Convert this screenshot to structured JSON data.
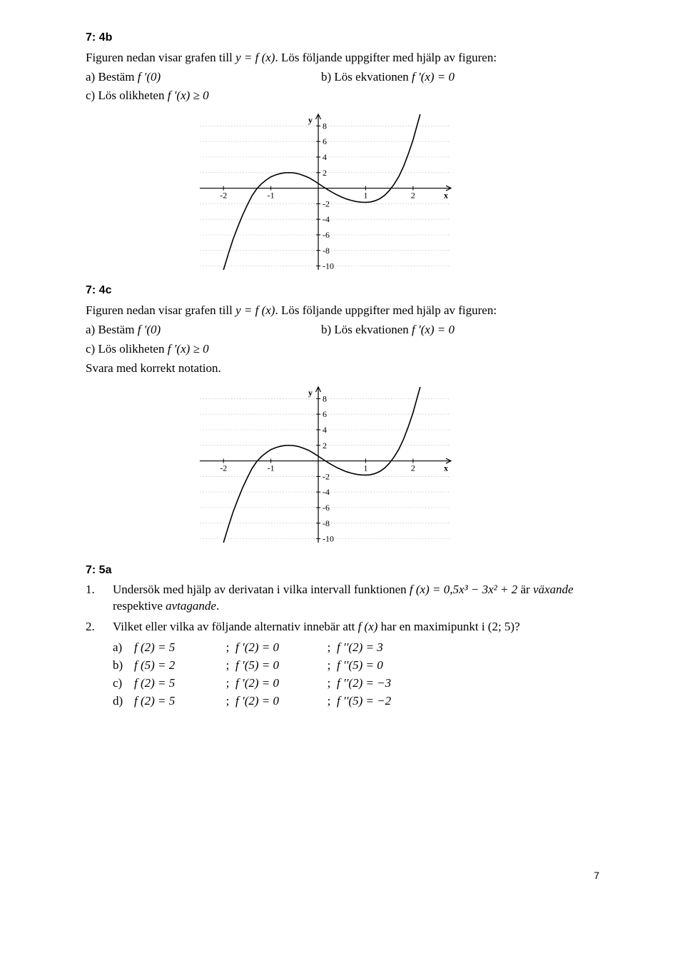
{
  "sec4b": {
    "head": "7: 4b",
    "intro_pre": "Figuren nedan visar grafen till ",
    "intro_fn": "y = f (x)",
    "intro_post": ". Lös följande uppgifter med hjälp av figuren:",
    "a_pre": "a) Bestäm ",
    "a_expr": "f ′(0)",
    "b_pre": "b) Lös ekvationen ",
    "b_expr": "f ′(x) = 0",
    "c_pre": "c) Lös olikheten ",
    "c_expr": "f ′(x) ≥ 0"
  },
  "sec4c": {
    "head": "7: 4c",
    "intro_pre": "Figuren nedan visar grafen till ",
    "intro_fn": "y = f (x)",
    "intro_post": ". Lös följande uppgifter med hjälp av figuren:",
    "a_pre": "a) Bestäm ",
    "a_expr": "f ′(0)",
    "b_pre": "b) Lös ekvationen ",
    "b_expr": "f ′(x) = 0",
    "c_pre": "c) Lös olikheten ",
    "c_expr": "f ′(x) ≥ 0",
    "note": "Svara med korrekt notation."
  },
  "graph": {
    "x_ticks": [
      -2,
      -1,
      1,
      2
    ],
    "y_ticks_pos": [
      2,
      4,
      6,
      8
    ],
    "y_ticks_neg": [
      -2,
      -4,
      -6,
      -8,
      -10
    ],
    "xlabel": "x",
    "ylabel": "y",
    "xlim": [
      -2.5,
      2.8
    ],
    "ylim": [
      -10.5,
      9.5
    ],
    "grid_color": "#bdbdbd",
    "axis_color": "#000000",
    "curve_color": "#000000",
    "curve_width": 1.6,
    "tick_font": 12,
    "curve_points": [
      [
        -2.0,
        -10.5
      ],
      [
        -1.9,
        -8.5
      ],
      [
        -1.8,
        -6.6
      ],
      [
        -1.7,
        -5.0
      ],
      [
        -1.6,
        -3.5
      ],
      [
        -1.5,
        -2.2
      ],
      [
        -1.4,
        -1.0
      ],
      [
        -1.3,
        -0.1
      ],
      [
        -1.2,
        0.55
      ],
      [
        -1.1,
        1.05
      ],
      [
        -1.0,
        1.45
      ],
      [
        -0.9,
        1.7
      ],
      [
        -0.8,
        1.88
      ],
      [
        -0.7,
        1.98
      ],
      [
        -0.6,
        2.0
      ],
      [
        -0.5,
        1.95
      ],
      [
        -0.4,
        1.82
      ],
      [
        -0.3,
        1.6
      ],
      [
        -0.2,
        1.35
      ],
      [
        -0.1,
        1.0
      ],
      [
        0.0,
        0.6
      ],
      [
        0.1,
        0.2
      ],
      [
        0.2,
        -0.2
      ],
      [
        0.3,
        -0.55
      ],
      [
        0.4,
        -0.88
      ],
      [
        0.5,
        -1.15
      ],
      [
        0.6,
        -1.4
      ],
      [
        0.7,
        -1.58
      ],
      [
        0.8,
        -1.72
      ],
      [
        0.9,
        -1.8
      ],
      [
        1.0,
        -1.82
      ],
      [
        1.1,
        -1.78
      ],
      [
        1.2,
        -1.62
      ],
      [
        1.3,
        -1.35
      ],
      [
        1.4,
        -0.92
      ],
      [
        1.5,
        -0.3
      ],
      [
        1.6,
        0.5
      ],
      [
        1.7,
        1.5
      ],
      [
        1.8,
        2.8
      ],
      [
        1.9,
        4.4
      ],
      [
        2.0,
        6.2
      ],
      [
        2.1,
        8.4
      ],
      [
        2.15,
        9.5
      ]
    ]
  },
  "sec5a": {
    "head": "7: 5a",
    "q1_num": "1.",
    "q1_pre": "Undersök med hjälp av derivatan i vilka intervall funktionen ",
    "q1_expr": "f (x) = 0,5x³ − 3x² + 2",
    "q1_mid": " är ",
    "q1_v": "växande",
    "q1_nl": "respektive ",
    "q1_a": "avtagande",
    "q1_dot": ".",
    "q2_num": "2.",
    "q2_pre": "Vilket eller vilka av följande alternativ innebär att ",
    "q2_fx": "f (x)",
    "q2_post": " har en maximipunkt i (2; 5)?",
    "rows": [
      {
        "lbl": "a)",
        "p1": "f (2) = 5",
        "p2": "f ′(2) = 0",
        "p3": "f ′′(2) = 3"
      },
      {
        "lbl": "b)",
        "p1": "f (5) = 2",
        "p2": "f ′(5) = 0",
        "p3": "f ′′(5) = 0"
      },
      {
        "lbl": "c)",
        "p1": "f (2) = 5",
        "p2": "f ′(2) = 0",
        "p3": "f ′′(2) = −3"
      },
      {
        "lbl": "d)",
        "p1": "f (2) = 5",
        "p2": "f ′(2) = 0",
        "p3": "f ′′(5) = −2"
      }
    ]
  },
  "page_num": "7"
}
